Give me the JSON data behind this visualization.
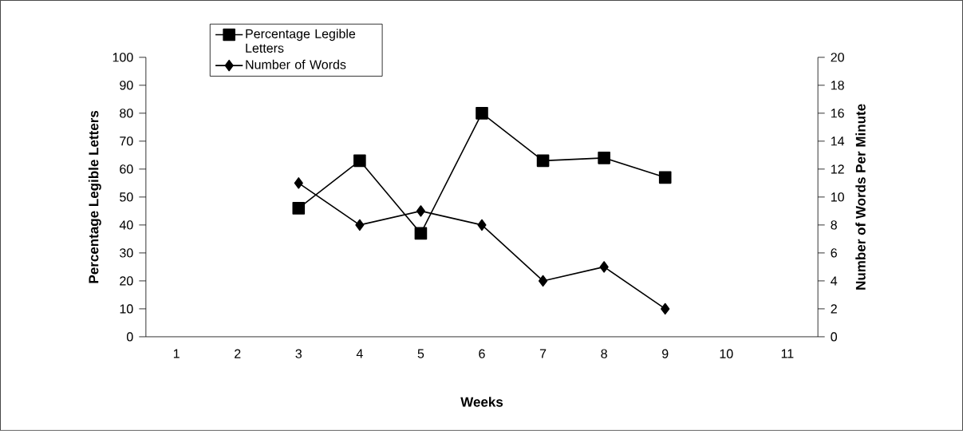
{
  "chart_data": {
    "type": "line",
    "xlabel": "Weeks",
    "ylabel": "Percentage Legible Letters",
    "y2label": "Number of Words Per Minute",
    "categories": [
      "1",
      "2",
      "3",
      "4",
      "5",
      "6",
      "7",
      "8",
      "9",
      "10",
      "11"
    ],
    "series": [
      {
        "name": "Percentage Legible Letters",
        "color": "#000000",
        "marker": "square",
        "values": [
          null,
          null,
          46,
          63,
          37,
          80,
          63,
          64,
          57,
          null,
          null
        ]
      },
      {
        "name": "Number of Words",
        "color": "#000000",
        "marker": "diamond",
        "axis": "y2",
        "values": [
          null,
          null,
          11,
          8,
          9,
          8,
          4,
          5,
          2,
          null,
          null
        ]
      }
    ],
    "ylim": [
      0,
      100
    ],
    "yticks": [
      0,
      10,
      20,
      30,
      40,
      50,
      60,
      70,
      80,
      90,
      100
    ],
    "y2lim": [
      0,
      20
    ],
    "y2ticks": [
      0,
      2,
      4,
      6,
      8,
      10,
      12,
      14,
      16,
      18,
      20
    ],
    "grid": false,
    "legend": "top left",
    "line_style": "solid"
  }
}
